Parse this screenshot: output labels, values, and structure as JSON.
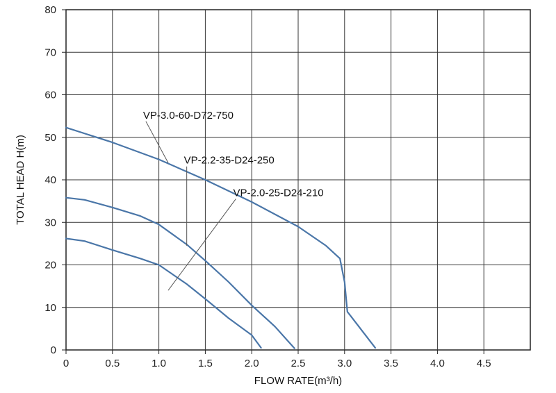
{
  "chart_data": {
    "type": "line",
    "xlabel": "FLOW RATE(m³/h)",
    "ylabel": "TOTAL HEAD H(m)",
    "xlim": [
      0,
      5.0
    ],
    "ylim": [
      0,
      80
    ],
    "x_ticks": [
      0,
      0.5,
      1.0,
      1.5,
      2.0,
      2.5,
      3.0,
      3.5,
      4.0,
      4.5
    ],
    "x_tick_labels": [
      "0",
      "0.5",
      "1.0",
      "1.5",
      "2.0",
      "2.5",
      "3.0",
      "3.5",
      "4.0",
      "4.5"
    ],
    "y_ticks": [
      0,
      10,
      20,
      30,
      40,
      50,
      60,
      70,
      80
    ],
    "y_tick_labels": [
      "0",
      "10",
      "20",
      "30",
      "40",
      "50",
      "60",
      "70",
      "80"
    ],
    "grid": true,
    "series": [
      {
        "name": "VP-3.0-60-D72-750",
        "color": "#4a76a8",
        "points": [
          [
            0,
            52.3
          ],
          [
            0.5,
            48.8
          ],
          [
            1.0,
            44.8
          ],
          [
            1.5,
            40.0
          ],
          [
            2.0,
            34.8
          ],
          [
            2.5,
            29.0
          ],
          [
            2.8,
            24.5
          ],
          [
            2.95,
            21.5
          ],
          [
            3.0,
            16.0
          ],
          [
            3.03,
            9.0
          ],
          [
            3.1,
            7.0
          ],
          [
            3.33,
            0.5
          ]
        ],
        "callout_at": [
          1.1,
          44.0
        ]
      },
      {
        "name": "VP-2.2-35-D24-250",
        "color": "#4a76a8",
        "points": [
          [
            0,
            35.8
          ],
          [
            0.2,
            35.3
          ],
          [
            0.5,
            33.5
          ],
          [
            0.8,
            31.5
          ],
          [
            1.0,
            29.5
          ],
          [
            1.3,
            24.8
          ],
          [
            1.5,
            21.0
          ],
          [
            1.75,
            16.0
          ],
          [
            2.0,
            10.5
          ],
          [
            2.25,
            5.5
          ],
          [
            2.46,
            0.4
          ]
        ],
        "callout_at": [
          1.3,
          24.5
        ]
      },
      {
        "name": "VP-2.0-25-D24-210",
        "color": "#4a76a8",
        "points": [
          [
            0,
            26.2
          ],
          [
            0.2,
            25.6
          ],
          [
            0.5,
            23.5
          ],
          [
            0.8,
            21.5
          ],
          [
            1.0,
            20.0
          ],
          [
            1.3,
            15.5
          ],
          [
            1.5,
            12.0
          ],
          [
            1.75,
            7.5
          ],
          [
            2.0,
            3.5
          ],
          [
            2.1,
            0.5
          ]
        ],
        "callout_at": [
          1.1,
          14.0
        ]
      }
    ],
    "labels": [
      {
        "text": "VP-3.0-60-D72-750",
        "at": [
          0.83,
          54.4
        ],
        "series_index": 0
      },
      {
        "text": "VP-2.2-35-D24-250",
        "at": [
          1.27,
          43.8
        ],
        "series_index": 1
      },
      {
        "text": "VP-2.0-25-D24-210",
        "at": [
          1.8,
          36.2
        ],
        "series_index": 2
      }
    ]
  }
}
